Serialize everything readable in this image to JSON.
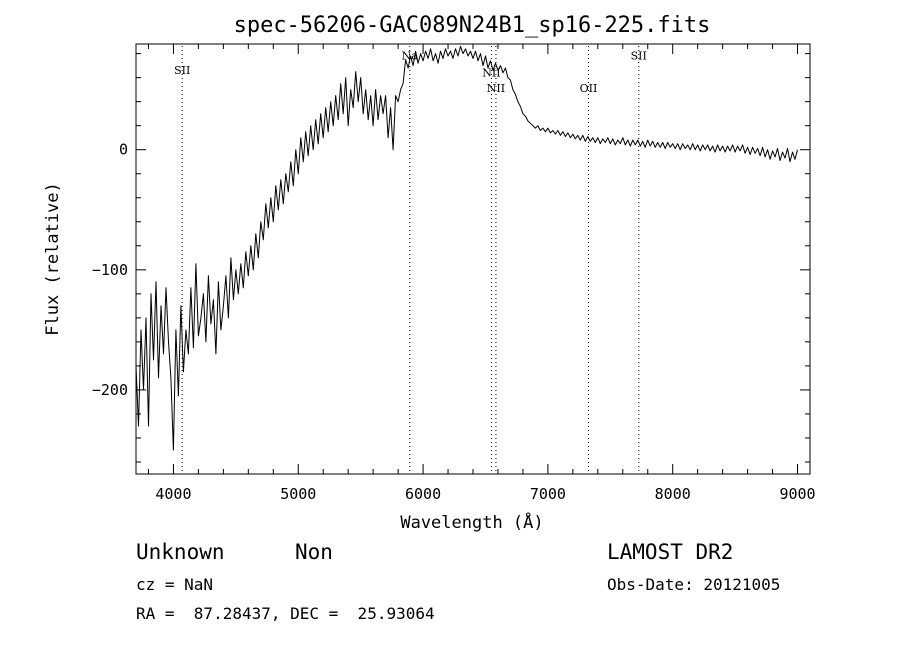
{
  "chart_data": {
    "type": "line",
    "title": "spec-56206-GAC089N24B1_sp16-225.fits",
    "xlabel": "Wavelength (Å)",
    "ylabel": "Flux (relative)",
    "xlim": [
      3700,
      9100
    ],
    "ylim": [
      -270,
      88
    ],
    "x_ticks": [
      4000,
      5000,
      6000,
      7000,
      8000,
      9000
    ],
    "y_ticks": [
      -200,
      -100,
      0
    ],
    "series": [
      {
        "color": "#000000",
        "points": [
          [
            3700,
            -180
          ],
          [
            3720,
            -230
          ],
          [
            3740,
            -150
          ],
          [
            3760,
            -200
          ],
          [
            3780,
            -140
          ],
          [
            3800,
            -230
          ],
          [
            3820,
            -120
          ],
          [
            3840,
            -175
          ],
          [
            3860,
            -110
          ],
          [
            3880,
            -190
          ],
          [
            3900,
            -130
          ],
          [
            3920,
            -170
          ],
          [
            3940,
            -115
          ],
          [
            3960,
            -160
          ],
          [
            3980,
            -190
          ],
          [
            4000,
            -250
          ],
          [
            4020,
            -150
          ],
          [
            4040,
            -205
          ],
          [
            4060,
            -130
          ],
          [
            4080,
            -185
          ],
          [
            4100,
            -150
          ],
          [
            4120,
            -170
          ],
          [
            4140,
            -115
          ],
          [
            4160,
            -165
          ],
          [
            4180,
            -95
          ],
          [
            4200,
            -155
          ],
          [
            4220,
            -140
          ],
          [
            4240,
            -120
          ],
          [
            4260,
            -160
          ],
          [
            4280,
            -105
          ],
          [
            4300,
            -145
          ],
          [
            4320,
            -125
          ],
          [
            4340,
            -170
          ],
          [
            4360,
            -110
          ],
          [
            4380,
            -150
          ],
          [
            4400,
            -130
          ],
          [
            4420,
            -105
          ],
          [
            4440,
            -140
          ],
          [
            4460,
            -90
          ],
          [
            4480,
            -125
          ],
          [
            4500,
            -100
          ],
          [
            4520,
            -120
          ],
          [
            4540,
            -95
          ],
          [
            4560,
            -115
          ],
          [
            4580,
            -85
          ],
          [
            4600,
            -105
          ],
          [
            4620,
            -80
          ],
          [
            4640,
            -100
          ],
          [
            4660,
            -70
          ],
          [
            4680,
            -90
          ],
          [
            4700,
            -60
          ],
          [
            4720,
            -75
          ],
          [
            4740,
            -45
          ],
          [
            4760,
            -65
          ],
          [
            4780,
            -40
          ],
          [
            4800,
            -60
          ],
          [
            4820,
            -30
          ],
          [
            4840,
            -50
          ],
          [
            4860,
            -25
          ],
          [
            4880,
            -45
          ],
          [
            4900,
            -20
          ],
          [
            4920,
            -35
          ],
          [
            4940,
            -10
          ],
          [
            4960,
            -30
          ],
          [
            4980,
            0
          ],
          [
            5000,
            -20
          ],
          [
            5020,
            10
          ],
          [
            5040,
            -10
          ],
          [
            5060,
            15
          ],
          [
            5080,
            -5
          ],
          [
            5100,
            20
          ],
          [
            5120,
            0
          ],
          [
            5140,
            25
          ],
          [
            5160,
            5
          ],
          [
            5180,
            30
          ],
          [
            5200,
            10
          ],
          [
            5220,
            35
          ],
          [
            5240,
            15
          ],
          [
            5260,
            40
          ],
          [
            5280,
            20
          ],
          [
            5300,
            45
          ],
          [
            5320,
            25
          ],
          [
            5340,
            55
          ],
          [
            5360,
            30
          ],
          [
            5380,
            60
          ],
          [
            5400,
            20
          ],
          [
            5420,
            50
          ],
          [
            5440,
            35
          ],
          [
            5460,
            65
          ],
          [
            5480,
            40
          ],
          [
            5500,
            60
          ],
          [
            5520,
            30
          ],
          [
            5540,
            50
          ],
          [
            5560,
            25
          ],
          [
            5580,
            45
          ],
          [
            5600,
            20
          ],
          [
            5620,
            50
          ],
          [
            5640,
            25
          ],
          [
            5660,
            45
          ],
          [
            5680,
            30
          ],
          [
            5700,
            45
          ],
          [
            5720,
            10
          ],
          [
            5740,
            35
          ],
          [
            5760,
            0
          ],
          [
            5780,
            45
          ],
          [
            5800,
            40
          ],
          [
            5820,
            50
          ],
          [
            5840,
            55
          ],
          [
            5860,
            75
          ],
          [
            5880,
            68
          ],
          [
            5900,
            78
          ],
          [
            5920,
            70
          ],
          [
            5940,
            82
          ],
          [
            5960,
            72
          ],
          [
            5980,
            80
          ],
          [
            6000,
            74
          ],
          [
            6020,
            82
          ],
          [
            6040,
            76
          ],
          [
            6060,
            84
          ],
          [
            6080,
            74
          ],
          [
            6100,
            80
          ],
          [
            6120,
            72
          ],
          [
            6140,
            82
          ],
          [
            6160,
            76
          ],
          [
            6180,
            84
          ],
          [
            6200,
            78
          ],
          [
            6220,
            82
          ],
          [
            6240,
            76
          ],
          [
            6260,
            84
          ],
          [
            6280,
            78
          ],
          [
            6300,
            86
          ],
          [
            6320,
            80
          ],
          [
            6340,
            84
          ],
          [
            6360,
            78
          ],
          [
            6380,
            82
          ],
          [
            6400,
            76
          ],
          [
            6420,
            82
          ],
          [
            6440,
            74
          ],
          [
            6460,
            80
          ],
          [
            6480,
            70
          ],
          [
            6500,
            78
          ],
          [
            6520,
            68
          ],
          [
            6540,
            74
          ],
          [
            6560,
            66
          ],
          [
            6580,
            72
          ],
          [
            6600,
            66
          ],
          [
            6620,
            70
          ],
          [
            6640,
            64
          ],
          [
            6660,
            68
          ],
          [
            6680,
            60
          ],
          [
            6700,
            58
          ],
          [
            6720,
            50
          ],
          [
            6740,
            46
          ],
          [
            6760,
            40
          ],
          [
            6780,
            36
          ],
          [
            6800,
            30
          ],
          [
            6820,
            28
          ],
          [
            6840,
            24
          ],
          [
            6860,
            22
          ],
          [
            6880,
            20
          ],
          [
            6900,
            18
          ],
          [
            6920,
            20
          ],
          [
            6940,
            16
          ],
          [
            6960,
            18
          ],
          [
            6980,
            15
          ],
          [
            7000,
            18
          ],
          [
            7020,
            14
          ],
          [
            7040,
            16
          ],
          [
            7060,
            13
          ],
          [
            7080,
            16
          ],
          [
            7100,
            12
          ],
          [
            7120,
            15
          ],
          [
            7140,
            11
          ],
          [
            7160,
            14
          ],
          [
            7180,
            10
          ],
          [
            7200,
            13
          ],
          [
            7220,
            9
          ],
          [
            7240,
            12
          ],
          [
            7260,
            8
          ],
          [
            7280,
            12
          ],
          [
            7300,
            7
          ],
          [
            7320,
            11
          ],
          [
            7340,
            7
          ],
          [
            7360,
            10
          ],
          [
            7380,
            6
          ],
          [
            7400,
            10
          ],
          [
            7420,
            5
          ],
          [
            7440,
            9
          ],
          [
            7460,
            6
          ],
          [
            7480,
            10
          ],
          [
            7500,
            5
          ],
          [
            7520,
            9
          ],
          [
            7540,
            4
          ],
          [
            7560,
            8
          ],
          [
            7580,
            5
          ],
          [
            7600,
            10
          ],
          [
            7620,
            4
          ],
          [
            7640,
            8
          ],
          [
            7660,
            3
          ],
          [
            7680,
            8
          ],
          [
            7700,
            4
          ],
          [
            7720,
            8
          ],
          [
            7740,
            3
          ],
          [
            7760,
            7
          ],
          [
            7780,
            2
          ],
          [
            7800,
            8
          ],
          [
            7820,
            3
          ],
          [
            7840,
            7
          ],
          [
            7860,
            2
          ],
          [
            7880,
            6
          ],
          [
            7900,
            2
          ],
          [
            7920,
            6
          ],
          [
            7940,
            1
          ],
          [
            7960,
            6
          ],
          [
            7980,
            2
          ],
          [
            8000,
            5
          ],
          [
            8020,
            1
          ],
          [
            8040,
            5
          ],
          [
            8060,
            0
          ],
          [
            8080,
            5
          ],
          [
            8100,
            1
          ],
          [
            8120,
            4
          ],
          [
            8140,
            0
          ],
          [
            8160,
            5
          ],
          [
            8180,
            0
          ],
          [
            8200,
            4
          ],
          [
            8220,
            -1
          ],
          [
            8240,
            4
          ],
          [
            8260,
            0
          ],
          [
            8280,
            4
          ],
          [
            8300,
            -1
          ],
          [
            8320,
            3
          ],
          [
            8340,
            -2
          ],
          [
            8360,
            4
          ],
          [
            8380,
            -1
          ],
          [
            8400,
            3
          ],
          [
            8420,
            -2
          ],
          [
            8440,
            3
          ],
          [
            8460,
            -1
          ],
          [
            8480,
            4
          ],
          [
            8500,
            -2
          ],
          [
            8520,
            3
          ],
          [
            8540,
            -1
          ],
          [
            8560,
            4
          ],
          [
            8580,
            -3
          ],
          [
            8600,
            2
          ],
          [
            8620,
            -4
          ],
          [
            8640,
            2
          ],
          [
            8660,
            -3
          ],
          [
            8680,
            1
          ],
          [
            8700,
            -5
          ],
          [
            8720,
            2
          ],
          [
            8740,
            -6
          ],
          [
            8760,
            0
          ],
          [
            8780,
            -8
          ],
          [
            8800,
            -1
          ],
          [
            8820,
            -6
          ],
          [
            8840,
            1
          ],
          [
            8860,
            -9
          ],
          [
            8880,
            -2
          ],
          [
            8900,
            -7
          ],
          [
            8920,
            1
          ],
          [
            8940,
            -10
          ],
          [
            8960,
            -2
          ],
          [
            8980,
            -8
          ],
          [
            9000,
            0
          ]
        ]
      }
    ],
    "lines": [
      {
        "label": "SII",
        "x": 4070,
        "label_y": 63
      },
      {
        "label": "Na",
        "x": 5893,
        "label_y": 75
      },
      {
        "label": "NII",
        "x": 6548,
        "label_y": 61
      },
      {
        "label": "NII",
        "x": 6584,
        "label_y": 48
      },
      {
        "label": "OII",
        "x": 7325,
        "label_y": 48
      },
      {
        "label": "SII",
        "x": 7728,
        "label_y": 75
      }
    ],
    "grid": false,
    "legend": "none"
  },
  "info": {
    "classification": "Unknown",
    "subclass": "Non",
    "survey": "LAMOST DR2",
    "redshift": "cz = NaN",
    "obs_date": "Obs-Date: 20121005",
    "coords": "RA =  87.28437, DEC =  25.93064"
  }
}
